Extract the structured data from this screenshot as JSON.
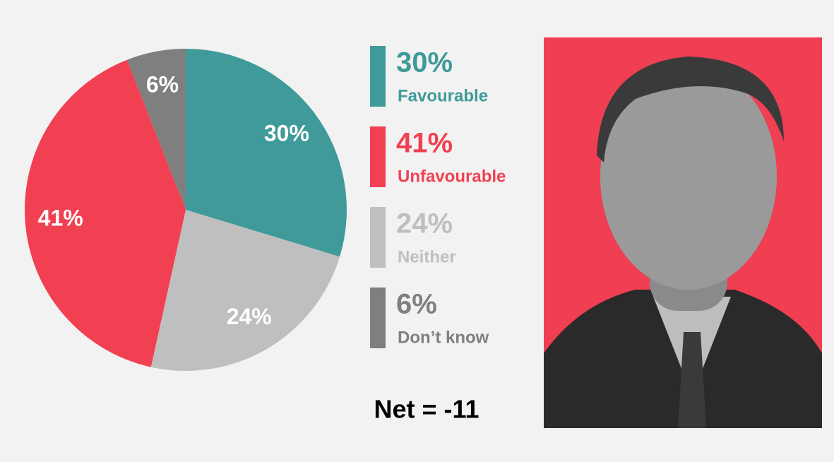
{
  "chart_data": {
    "type": "pie",
    "categories": [
      "Favourable",
      "Neither",
      "Unfavourable",
      "Don’t know"
    ],
    "values": [
      30,
      24,
      41,
      6
    ],
    "value_labels": [
      "30%",
      "24%",
      "41%",
      "6%"
    ],
    "colors": [
      "#409a9a",
      "#bfbfbf",
      "#f04052",
      "#7f7f7f"
    ],
    "annotations": [
      "Net = -11"
    ]
  }
}
